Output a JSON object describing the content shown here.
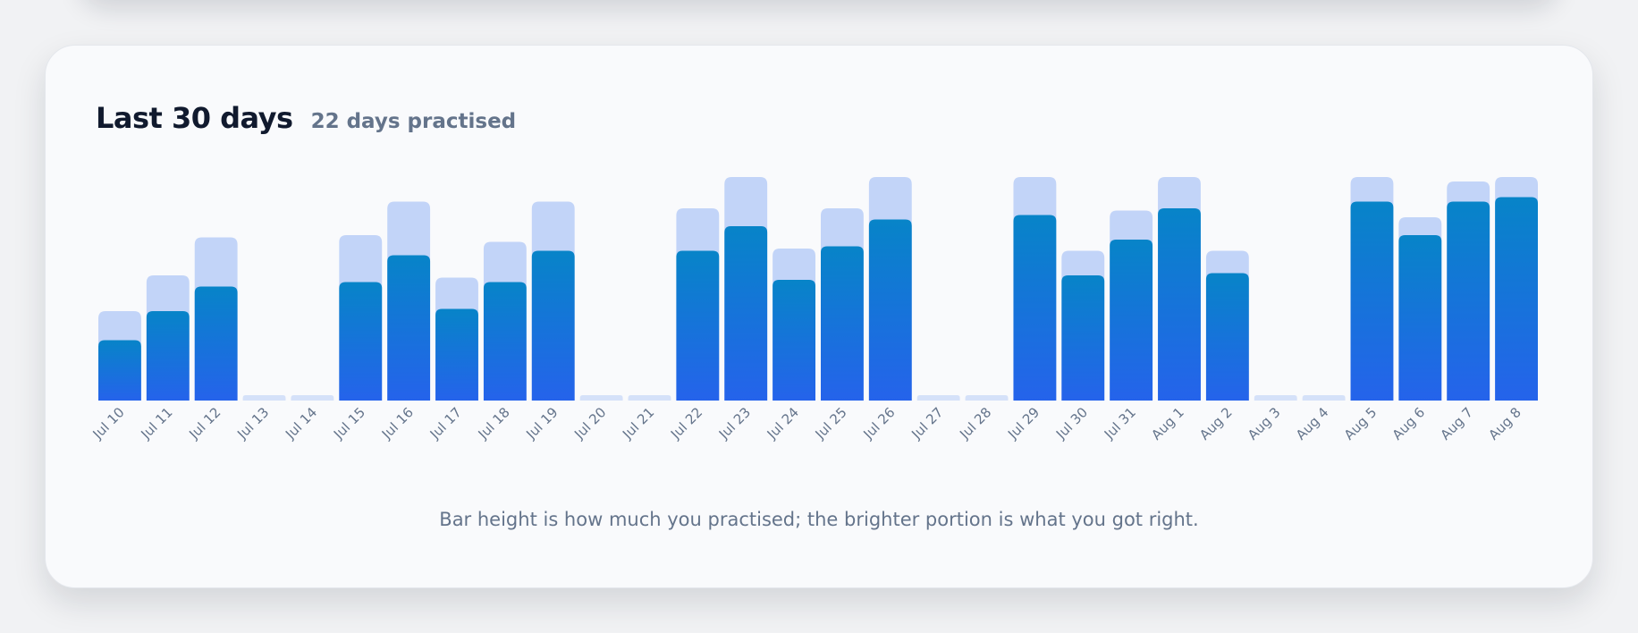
{
  "header": {
    "title": "Last 30 days",
    "subtitle": "22 days practised"
  },
  "caption": "Bar height is how much you practised; the brighter portion is what you got right.",
  "colors": {
    "total": "#c2d4f8",
    "correct_top": "#0784c8",
    "correct_bottom": "#2563eb",
    "empty": "#d5e1f9"
  },
  "chart_data": {
    "type": "bar",
    "stacked": "overlay",
    "categories": [
      "Jul 10",
      "Jul 11",
      "Jul 12",
      "Jul 13",
      "Jul 14",
      "Jul 15",
      "Jul 16",
      "Jul 17",
      "Jul 18",
      "Jul 19",
      "Jul 20",
      "Jul 21",
      "Jul 22",
      "Jul 23",
      "Jul 24",
      "Jul 25",
      "Jul 26",
      "Jul 27",
      "Jul 28",
      "Jul 29",
      "Jul 30",
      "Jul 31",
      "Aug 1",
      "Aug 2",
      "Aug 3",
      "Aug 4",
      "Aug 5",
      "Aug 6",
      "Aug 7",
      "Aug 8"
    ],
    "series": [
      {
        "values": [
          40,
          56,
          73,
          0,
          0,
          74,
          89,
          55,
          71,
          89,
          0,
          0,
          86,
          100,
          68,
          86,
          100,
          0,
          0,
          100,
          67,
          85,
          100,
          67,
          0,
          0,
          100,
          82,
          98,
          100
        ]
      },
      {
        "values": [
          27,
          40,
          51,
          0,
          0,
          53,
          65,
          41,
          53,
          67,
          0,
          0,
          67,
          78,
          54,
          69,
          81,
          0,
          0,
          83,
          56,
          72,
          86,
          57,
          0,
          0,
          89,
          74,
          89,
          91
        ]
      }
    ],
    "ylim": [
      0,
      100
    ],
    "grid": false,
    "legend": "none"
  }
}
